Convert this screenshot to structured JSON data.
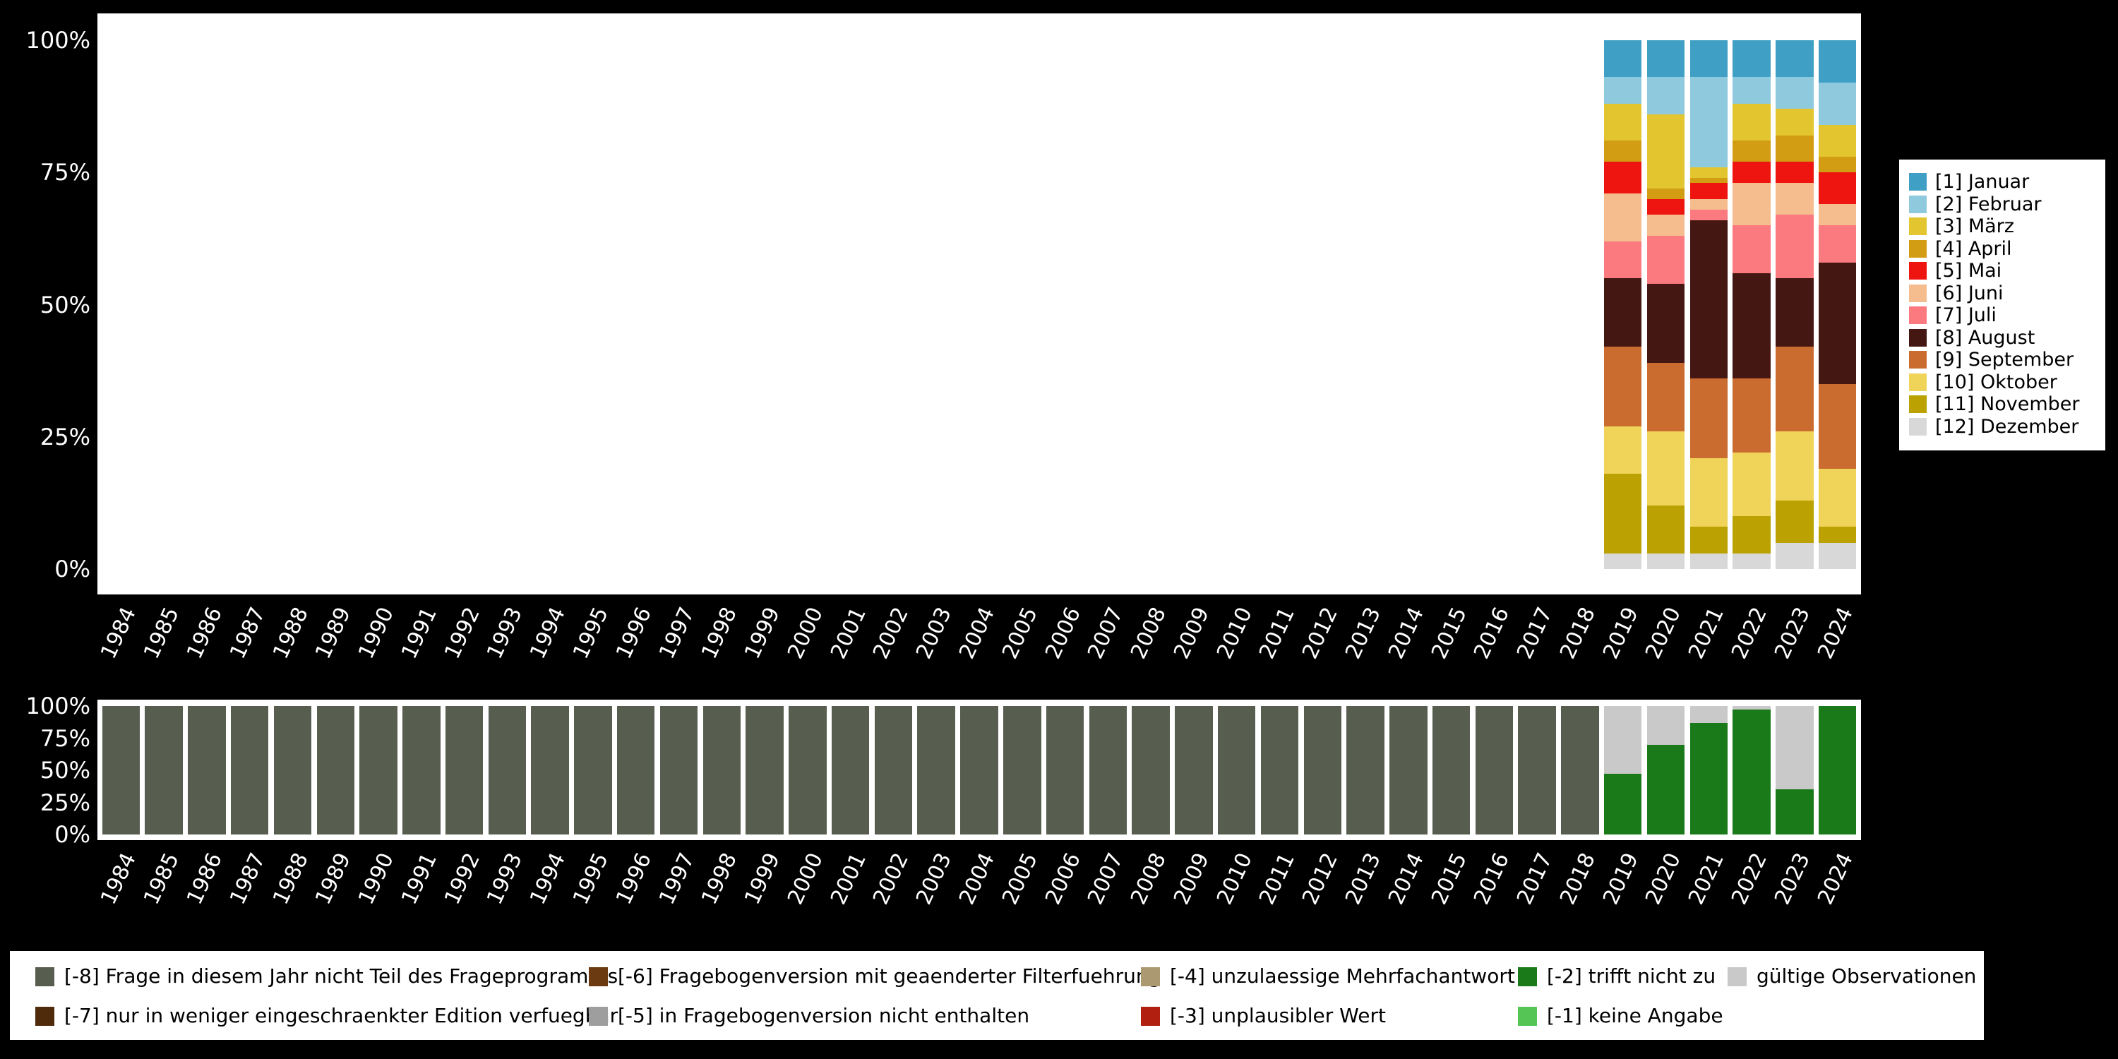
{
  "app": {
    "background": "#000000",
    "panel_color": "#ffffff",
    "axis_text_color": "#ffffff"
  },
  "years": [
    "1984",
    "1985",
    "1986",
    "1987",
    "1988",
    "1989",
    "1990",
    "1991",
    "1992",
    "1993",
    "1994",
    "1995",
    "1996",
    "1997",
    "1998",
    "1999",
    "2000",
    "2001",
    "2002",
    "2003",
    "2004",
    "2005",
    "2006",
    "2007",
    "2008",
    "2009",
    "2010",
    "2011",
    "2012",
    "2013",
    "2014",
    "2015",
    "2016",
    "2017",
    "2018",
    "2019",
    "2020",
    "2021",
    "2022",
    "2023",
    "2024"
  ],
  "chart_data": [
    {
      "type": "bar",
      "name": "values-distribution-by-year",
      "stacked": true,
      "unit": "percent",
      "ylim": [
        0,
        100
      ],
      "grid": false,
      "legend_position": "right",
      "y_tick_labels": [
        "100%",
        "75%",
        "50%",
        "25%",
        "0%"
      ],
      "categories": [
        "1984",
        "1985",
        "1986",
        "1987",
        "1988",
        "1989",
        "1990",
        "1991",
        "1992",
        "1993",
        "1994",
        "1995",
        "1996",
        "1997",
        "1998",
        "1999",
        "2000",
        "2001",
        "2002",
        "2003",
        "2004",
        "2005",
        "2006",
        "2007",
        "2008",
        "2009",
        "2010",
        "2011",
        "2012",
        "2013",
        "2014",
        "2015",
        "2016",
        "2017",
        "2018",
        "2019",
        "2020",
        "2021",
        "2022",
        "2023",
        "2024"
      ],
      "series": [
        {
          "id": "jan",
          "name": "[1] Januar",
          "color": "#3f9fc4",
          "values": {
            "2019": 7,
            "2020": 7,
            "2021": 7,
            "2022": 7,
            "2023": 7,
            "2024": 8
          }
        },
        {
          "id": "feb",
          "name": "[2] Februar",
          "color": "#8ec9dd",
          "values": {
            "2019": 5,
            "2020": 7,
            "2021": 17,
            "2022": 5,
            "2023": 6,
            "2024": 8
          }
        },
        {
          "id": "mar",
          "name": "[3] März",
          "color": "#e3c62f",
          "values": {
            "2019": 7,
            "2020": 14,
            "2021": 2,
            "2022": 7,
            "2023": 5,
            "2024": 6
          }
        },
        {
          "id": "apr",
          "name": "[4] April",
          "color": "#d29d12",
          "values": {
            "2019": 4,
            "2020": 2,
            "2021": 1,
            "2022": 4,
            "2023": 5,
            "2024": 3
          }
        },
        {
          "id": "mai",
          "name": "[5] Mai",
          "color": "#ee1410",
          "values": {
            "2019": 6,
            "2020": 3,
            "2021": 3,
            "2022": 4,
            "2023": 4,
            "2024": 6
          }
        },
        {
          "id": "jun",
          "name": "[6] Juni",
          "color": "#f5bd8d",
          "values": {
            "2019": 9,
            "2020": 4,
            "2021": 2,
            "2022": 8,
            "2023": 6,
            "2024": 4
          }
        },
        {
          "id": "jul",
          "name": "[7] Juli",
          "color": "#fa7a80",
          "values": {
            "2019": 7,
            "2020": 9,
            "2021": 2,
            "2022": 9,
            "2023": 12,
            "2024": 7
          }
        },
        {
          "id": "aug",
          "name": "[8] August",
          "color": "#451713",
          "values": {
            "2019": 13,
            "2020": 15,
            "2021": 30,
            "2022": 20,
            "2023": 13,
            "2024": 23
          }
        },
        {
          "id": "sep",
          "name": "[9] September",
          "color": "#ca6c30",
          "values": {
            "2019": 15,
            "2020": 13,
            "2021": 15,
            "2022": 14,
            "2023": 16,
            "2024": 16
          }
        },
        {
          "id": "okt",
          "name": "[10] Oktober",
          "color": "#f0d45a",
          "values": {
            "2019": 9,
            "2020": 14,
            "2021": 13,
            "2022": 12,
            "2023": 13,
            "2024": 11
          }
        },
        {
          "id": "nov",
          "name": "[11] November",
          "color": "#bba202",
          "values": {
            "2019": 15,
            "2020": 9,
            "2021": 5,
            "2022": 7,
            "2023": 8,
            "2024": 3
          }
        },
        {
          "id": "dez",
          "name": "[12] Dezember",
          "color": "#d8d8d8",
          "values": {
            "2019": 3,
            "2020": 3,
            "2021": 3,
            "2022": 3,
            "2023": 5,
            "2024": 5
          }
        }
      ]
    },
    {
      "type": "bar",
      "name": "missings-by-year",
      "stacked": true,
      "unit": "percent",
      "ylim": [
        0,
        100
      ],
      "grid": false,
      "legend_position": "bottom",
      "y_tick_labels": [
        "100%",
        "75%",
        "50%",
        "25%",
        "0%"
      ],
      "categories": [
        "1984",
        "1985",
        "1986",
        "1987",
        "1988",
        "1989",
        "1990",
        "1991",
        "1992",
        "1993",
        "1994",
        "1995",
        "1996",
        "1997",
        "1998",
        "1999",
        "2000",
        "2001",
        "2002",
        "2003",
        "2004",
        "2005",
        "2006",
        "2007",
        "2008",
        "2009",
        "2010",
        "2011",
        "2012",
        "2013",
        "2014",
        "2015",
        "2016",
        "2017",
        "2018",
        "2019",
        "2020",
        "2021",
        "2022",
        "2023",
        "2024"
      ],
      "series": [
        {
          "id": "m8",
          "name": "[-8] Frage in diesem Jahr nicht Teil des Frageprogramms",
          "color": "#575e50",
          "values": {
            "1984": 100,
            "1985": 100,
            "1986": 100,
            "1987": 100,
            "1988": 100,
            "1989": 100,
            "1990": 100,
            "1991": 100,
            "1992": 100,
            "1993": 100,
            "1994": 100,
            "1995": 100,
            "1996": 100,
            "1997": 100,
            "1998": 100,
            "1999": 100,
            "2000": 100,
            "2001": 100,
            "2002": 100,
            "2003": 100,
            "2004": 100,
            "2005": 100,
            "2006": 100,
            "2007": 100,
            "2008": 100,
            "2009": 100,
            "2010": 100,
            "2011": 100,
            "2012": 100,
            "2013": 100,
            "2014": 100,
            "2015": 100,
            "2016": 100,
            "2017": 100,
            "2018": 100
          }
        },
        {
          "id": "valid",
          "name": "gültige Observationen",
          "color": "#c9c9c9",
          "values": {
            "2019": 53,
            "2020": 30,
            "2021": 13,
            "2022": 3,
            "2023": 65
          }
        },
        {
          "id": "m2",
          "name": "[-2] trifft nicht zu",
          "color": "#1a7a1a",
          "values": {
            "2019": 47,
            "2020": 70,
            "2021": 87,
            "2022": 97,
            "2023": 35,
            "2024": 100
          }
        }
      ]
    }
  ],
  "legend_missing": [
    {
      "name": "[-8] Frage in diesem Jahr nicht Teil des Frageprogramms",
      "color": "#575e50"
    },
    {
      "name": "[-7] nur in weniger eingeschraenkter Edition verfuegbar",
      "color": "#4f2a0b"
    },
    {
      "name": "[-6] Fragebogenversion mit geaenderter Filterfuehrung",
      "color": "#6b3a10"
    },
    {
      "name": "[-5] in Fragebogenversion nicht enthalten",
      "color": "#9e9e9e"
    },
    {
      "name": "[-4] unzulaessige Mehrfachantwort",
      "color": "#ab9a71"
    },
    {
      "name": "[-3] unplausibler Wert",
      "color": "#b01f10"
    },
    {
      "name": "[-2] trifft nicht zu",
      "color": "#1a7a1a"
    },
    {
      "name": "[-1] keine Angabe",
      "color": "#55c556"
    },
    {
      "name": "gültige Observationen",
      "color": "#c9c9c9"
    }
  ]
}
